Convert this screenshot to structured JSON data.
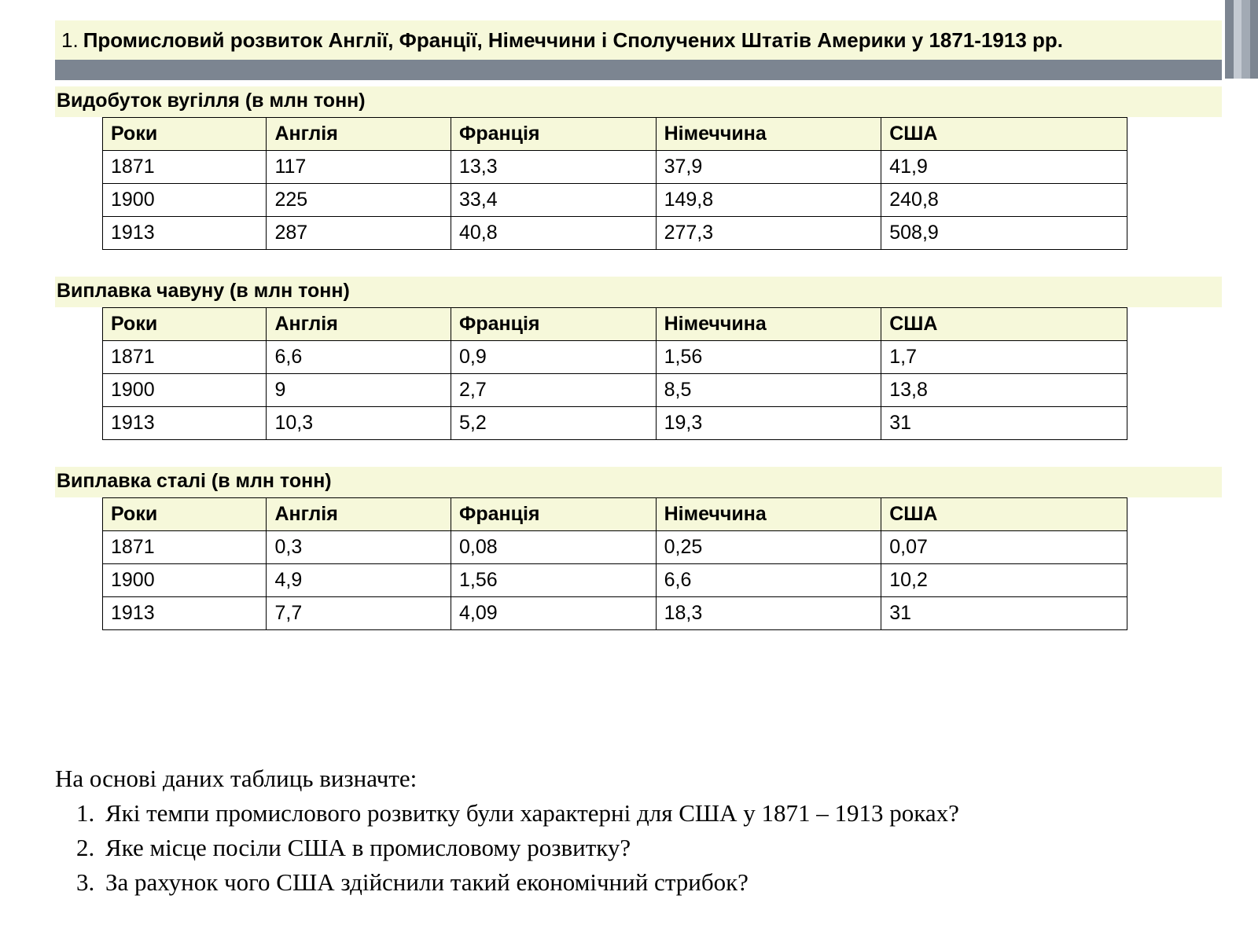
{
  "title_number": "1.",
  "title_text": "Промисловий розвиток Англії, Франції, Німеччини і Сполучених Штатів Америки у 1871-1913 рр.",
  "stripe_colors": [
    "#7c8591",
    "#c4cad2",
    "#a2aab4",
    "#7c8591"
  ],
  "band_color": "#f6f8da",
  "grey_bar_color": "#7c8591",
  "tables": [
    {
      "caption": "Видобуток вугілля (в млн тонн)",
      "columns": [
        "Роки",
        "Англія",
        "Франція",
        "Німеччина",
        "США"
      ],
      "rows": [
        [
          "1871",
          "117",
          "13,3",
          "37,9",
          "41,9"
        ],
        [
          "1900",
          "225",
          "33,4",
          "149,8",
          "240,8"
        ],
        [
          "1913",
          "287",
          "40,8",
          "277,3",
          "508,9"
        ]
      ]
    },
    {
      "caption": "Виплавка чавуну (в млн тонн)",
      "columns": [
        "Роки",
        "Англія",
        "Франція",
        "Німеччина",
        "США"
      ],
      "rows": [
        [
          "1871",
          "6,6",
          "0,9",
          "1,56",
          "1,7"
        ],
        [
          "1900",
          "9",
          "2,7",
          "8,5",
          "13,8"
        ],
        [
          "1913",
          "10,3",
          "5,2",
          "19,3",
          "31"
        ]
      ]
    },
    {
      "caption": "Виплавка сталі (в млн тонн)",
      "columns": [
        "Роки",
        "Англія",
        "Франція",
        "Німеччина",
        "США"
      ],
      "rows": [
        [
          "1871",
          "0,3",
          "0,08",
          "0,25",
          "0,07"
        ],
        [
          "1900",
          "4,9",
          "1,56",
          "6,6",
          "10,2"
        ],
        [
          "1913",
          "7,7",
          "4,09",
          "18,3",
          "31"
        ]
      ]
    }
  ],
  "questions_intro": "На основі даних таблиць визначте:",
  "questions": [
    "Які темпи промислового розвитку були характерні для США у 1871 – 1913 роках?",
    "Яке місце посіли США в промисловому розвитку?",
    "За рахунок чого США здійснили такий економічний стрибок?"
  ]
}
